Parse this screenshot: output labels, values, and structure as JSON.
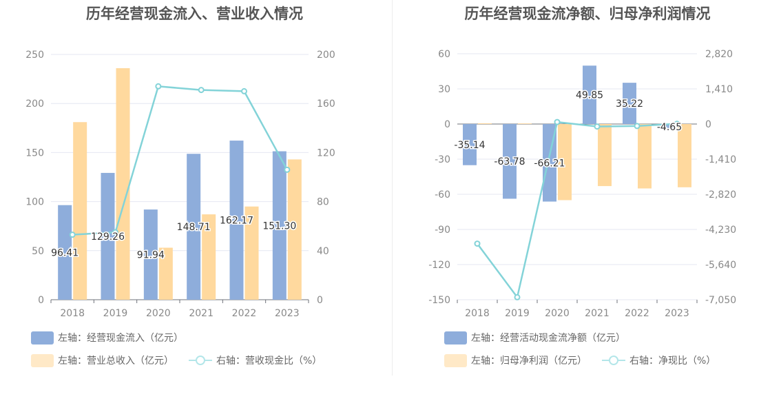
{
  "colors": {
    "bar_blue": "#8eaddb",
    "bar_orange": "#ffd99e",
    "line_teal": "#83d3d8",
    "grid": "#e4e7f2",
    "axis_text": "#888888",
    "title": "#555555"
  },
  "chart_data": [
    {
      "type": "bar",
      "title": "历年经营现金流入、营业收入情况",
      "categories": [
        "2018",
        "2019",
        "2020",
        "2021",
        "2022",
        "2023"
      ],
      "left_axis": {
        "ticks": [
          "0",
          "50",
          "100",
          "150",
          "200",
          "250"
        ],
        "ylim": [
          0,
          250
        ]
      },
      "right_axis": {
        "ticks": [
          "0",
          "40",
          "80",
          "120",
          "160",
          "200"
        ],
        "ylim": [
          0,
          200
        ]
      },
      "grid": true,
      "legend_position": "bottom-left",
      "series": [
        {
          "name": "左轴：经营现金流入（亿元）",
          "kind": "bar",
          "axis": "left",
          "values": [
            96.41,
            129.26,
            91.94,
            148.71,
            162.17,
            151.3
          ],
          "labels": [
            "96.41",
            "129.26",
            "91.94",
            "148.71",
            "162.17",
            "151.30"
          ]
        },
        {
          "name": "左轴：营业总收入（亿元）",
          "kind": "bar",
          "axis": "left",
          "values": [
            181,
            236,
            53,
            87,
            95,
            143
          ]
        },
        {
          "name": "右轴：营收现金比（%）",
          "kind": "line",
          "axis": "right",
          "values": [
            53,
            55,
            174,
            171,
            170,
            106
          ]
        }
      ]
    },
    {
      "type": "bar",
      "title": "历年经营现金流净额、归母净利润情况",
      "categories": [
        "2018",
        "2019",
        "2020",
        "2021",
        "2022",
        "2023"
      ],
      "left_axis": {
        "ticks": [
          "-150",
          "-120",
          "-90",
          "-60",
          "-30",
          "0",
          "30",
          "60"
        ],
        "ylim": [
          -150,
          60
        ]
      },
      "right_axis": {
        "ticks": [
          "-7,050",
          "-5,640",
          "-4,230",
          "-2,820",
          "-1,410",
          "0",
          "1,410",
          "2,820"
        ],
        "ylim": [
          -7050,
          2820
        ]
      },
      "grid": true,
      "legend_position": "bottom-left",
      "series": [
        {
          "name": "左轴：经营活动现金流净额（亿元）",
          "kind": "bar",
          "axis": "left",
          "values": [
            -35.14,
            -63.78,
            -66.21,
            49.85,
            35.22,
            -4.65
          ],
          "labels": [
            "-35.14",
            "-63.78",
            "-66.21",
            "49.85",
            "35.22",
            "-4.65"
          ]
        },
        {
          "name": "左轴：归母净利润（亿元）",
          "kind": "bar",
          "axis": "left",
          "values": [
            0.6,
            0.5,
            -65,
            -53,
            -55,
            -54
          ]
        },
        {
          "name": "右轴：净现比（%）",
          "kind": "line",
          "axis": "right",
          "values": [
            -4800,
            -6950,
            80,
            -100,
            -80,
            10
          ]
        }
      ]
    }
  ]
}
